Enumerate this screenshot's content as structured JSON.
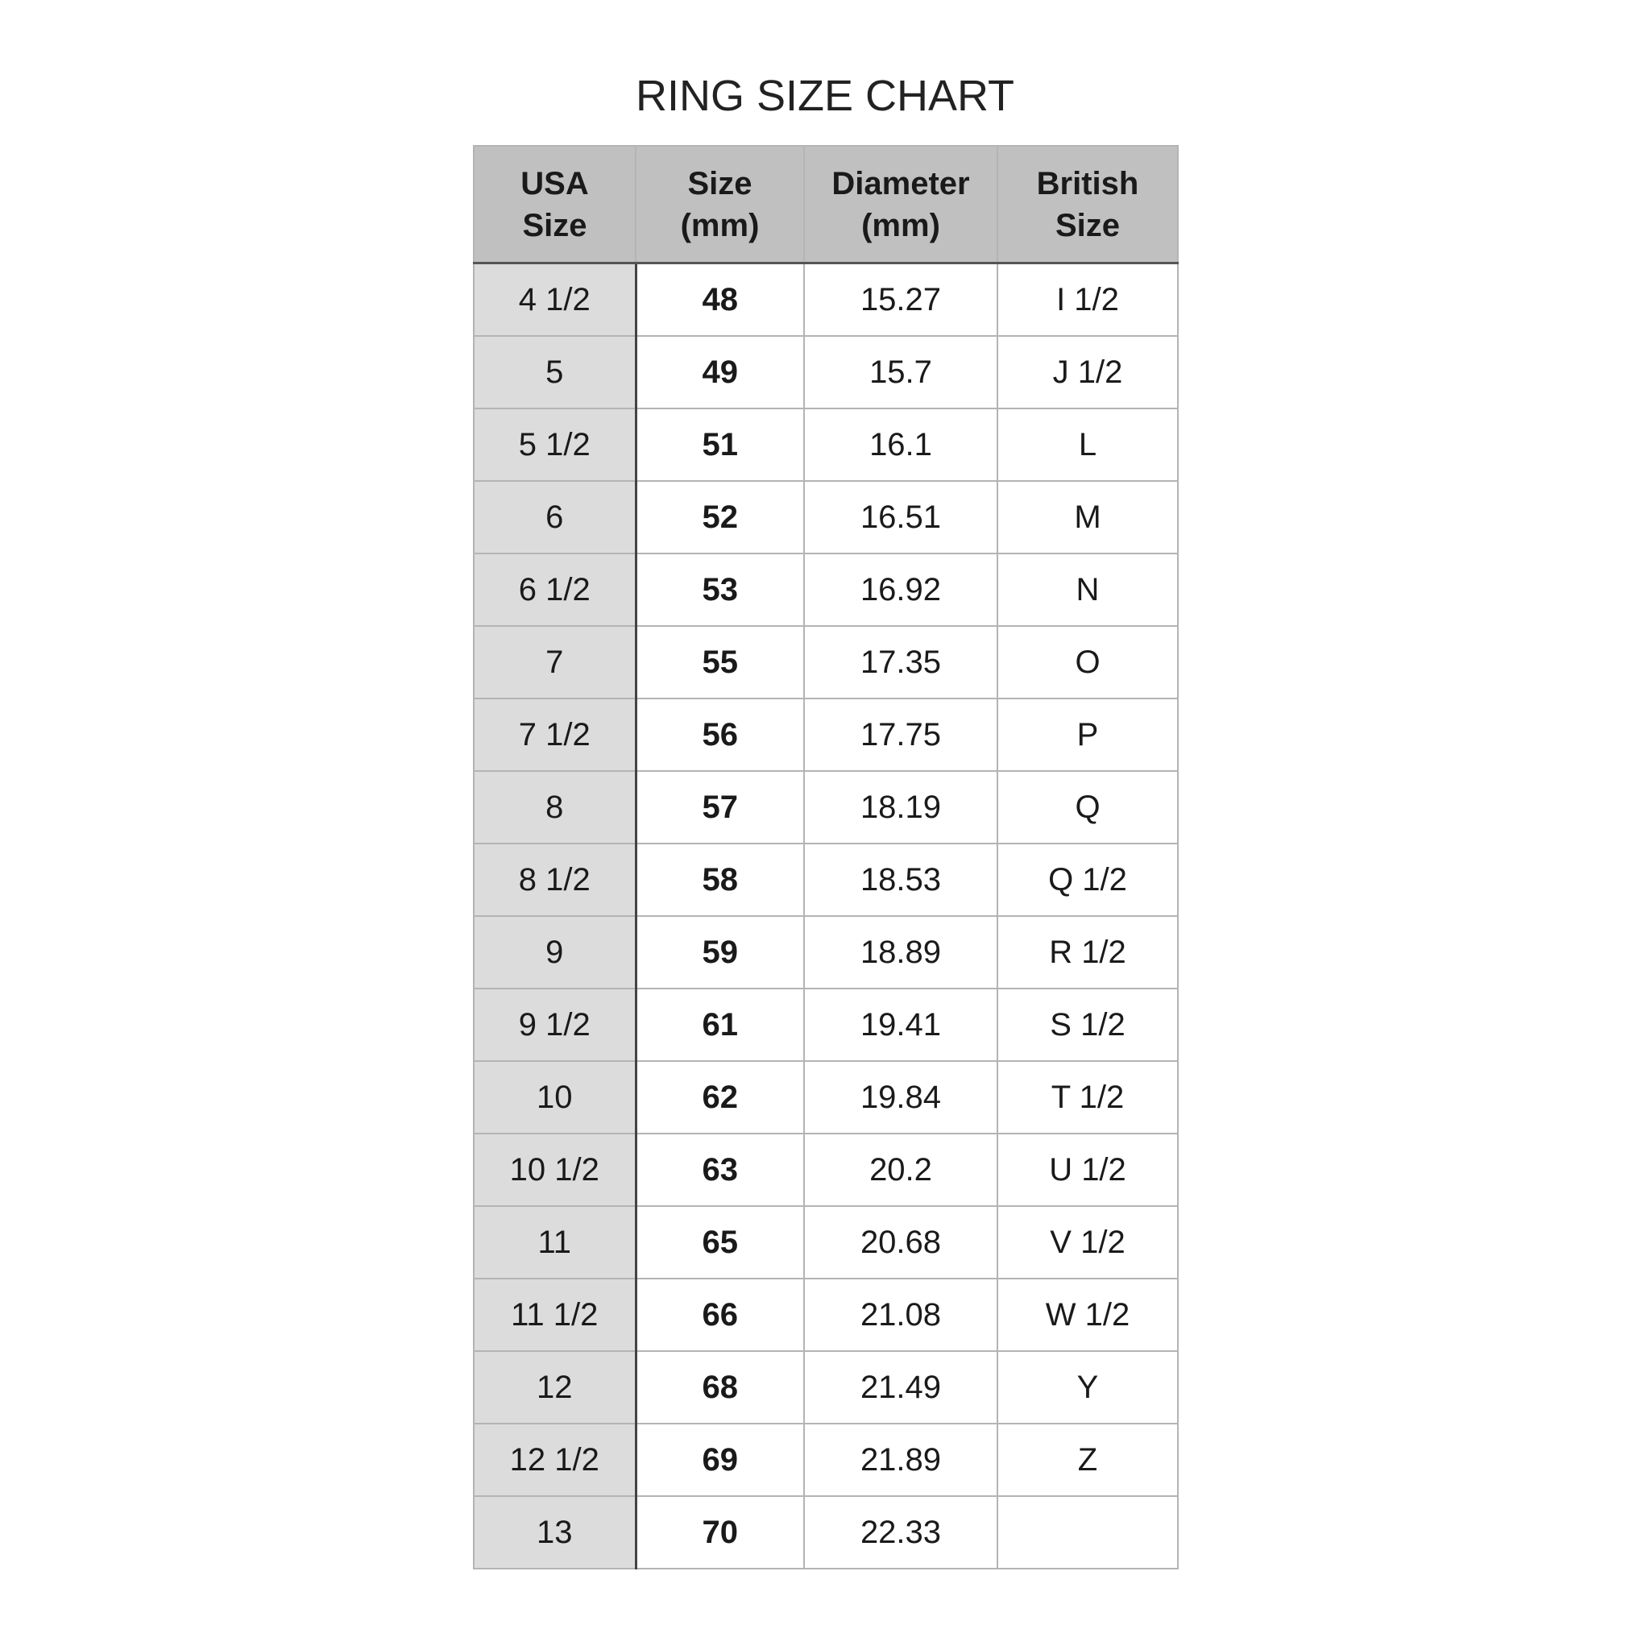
{
  "title": "RING SIZE CHART",
  "colors": {
    "header_bg": "#c0c0c0",
    "first_column_bg": "#dcdcdc",
    "grid": "#b4b4b4"
  },
  "headers": [
    [
      "USA",
      "Size"
    ],
    [
      "Size",
      "(mm)"
    ],
    [
      "Diameter",
      "(mm)"
    ],
    [
      "British",
      "Size"
    ]
  ],
  "rows": [
    [
      "4 1/2",
      "48",
      "15.27",
      "I 1/2"
    ],
    [
      "5",
      "49",
      "15.7",
      "J 1/2"
    ],
    [
      "5 1/2",
      "51",
      "16.1",
      "L"
    ],
    [
      "6",
      "52",
      "16.51",
      "M"
    ],
    [
      "6 1/2",
      "53",
      "16.92",
      "N"
    ],
    [
      "7",
      "55",
      "17.35",
      "O"
    ],
    [
      "7 1/2",
      "56",
      "17.75",
      "P"
    ],
    [
      "8",
      "57",
      "18.19",
      "Q"
    ],
    [
      "8 1/2",
      "58",
      "18.53",
      "Q 1/2"
    ],
    [
      "9",
      "59",
      "18.89",
      "R 1/2"
    ],
    [
      "9 1/2",
      "61",
      "19.41",
      "S 1/2"
    ],
    [
      "10",
      "62",
      "19.84",
      "T 1/2"
    ],
    [
      "10 1/2",
      "63",
      "20.2",
      "U 1/2"
    ],
    [
      "11",
      "65",
      "20.68",
      "V 1/2"
    ],
    [
      "11 1/2",
      "66",
      "21.08",
      "W 1/2"
    ],
    [
      "12",
      "68",
      "21.49",
      "Y"
    ],
    [
      "12 1/2",
      "69",
      "21.89",
      "Z"
    ],
    [
      "13",
      "70",
      "22.33",
      ""
    ]
  ]
}
